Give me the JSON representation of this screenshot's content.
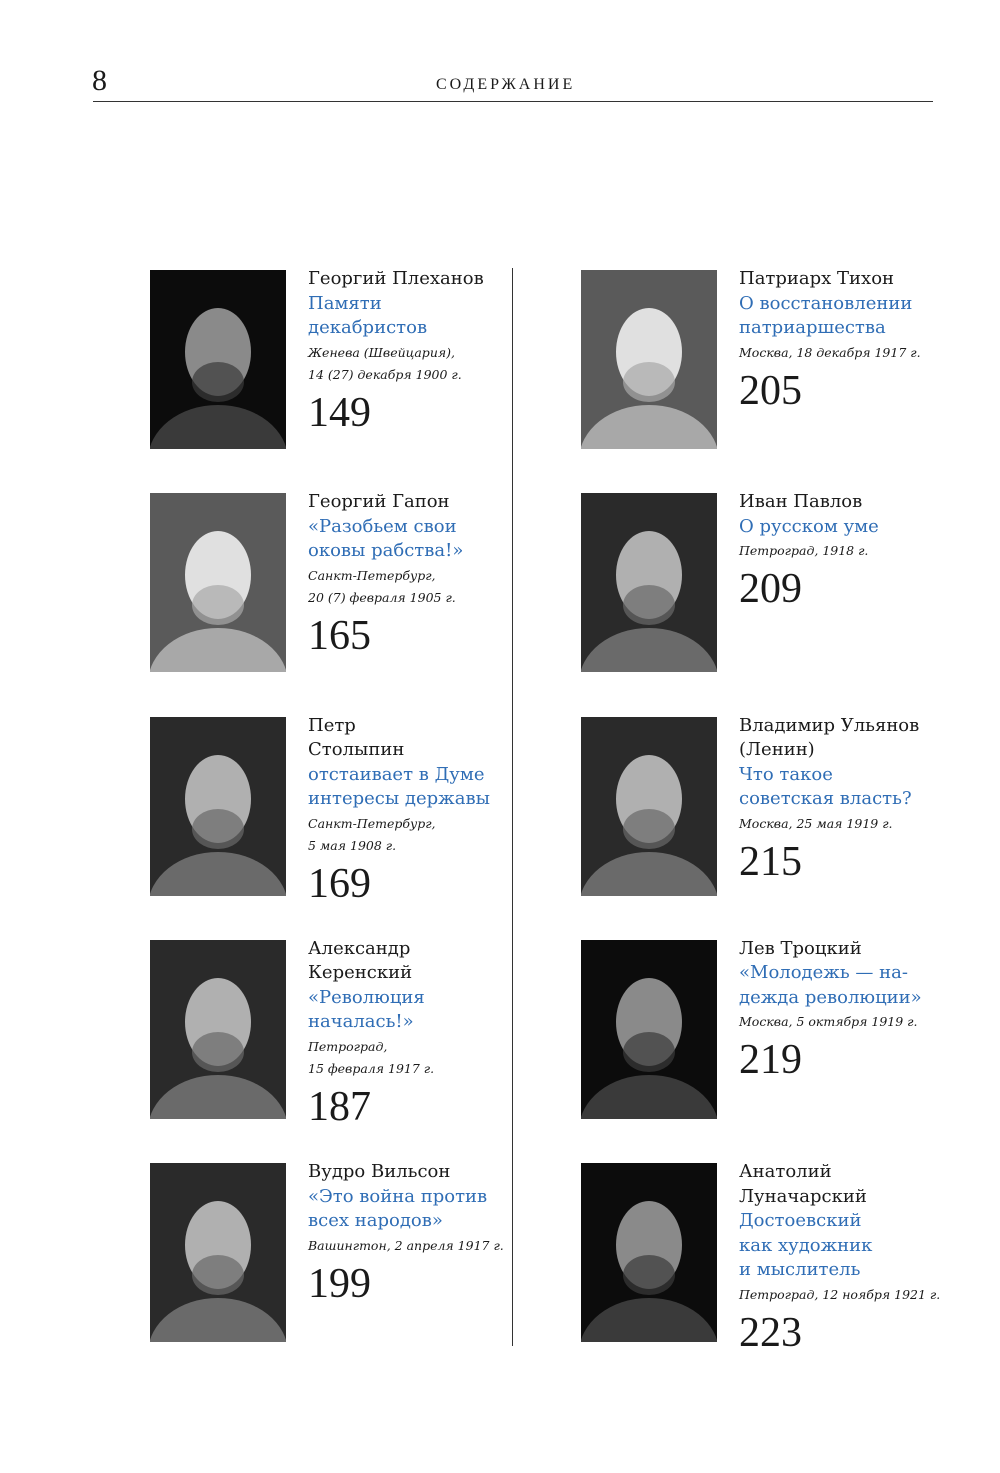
{
  "header": {
    "page_number": "8",
    "running_head": "СОДЕРЖАНИЕ"
  },
  "accent_color": "#2f6db5",
  "entries": [
    {
      "name": "Георгий Плеханов",
      "title": "Памяти\nдекабристов",
      "date": "Женева (Швейцария),\n14 (27) декабря 1900 г.",
      "page": "149",
      "photo_tone": "dark"
    },
    {
      "name": "Георгий Гапон",
      "title": "«Разобьем свои\nоковы рабства!»",
      "date": "Санкт-Петербург,\n20 (7) февраля 1905 г.",
      "page": "165",
      "photo_tone": "light"
    },
    {
      "name": "Петр\nСтолыпин",
      "title": "отстаивает в Думе\nинтересы державы",
      "date": "Санкт-Петербург,\n5 мая 1908 г.",
      "page": "169",
      "photo_tone": "mid"
    },
    {
      "name": "Александр\nКеренский",
      "title": "«Революция\nначалась!»",
      "date": "Петроград,\n15 февраля 1917 г.",
      "page": "187",
      "photo_tone": "mid"
    },
    {
      "name": "Вудро Вильсон",
      "title": "«Это война против\nвсех народов»",
      "date": "Вашингтон, 2 апреля 1917 г.",
      "page": "199",
      "photo_tone": "mid"
    },
    {
      "name": "Патриарх Тихон",
      "title": "О восстановлении\nпатриаршества",
      "date": "Москва, 18 декабря 1917 г.",
      "page": "205",
      "photo_tone": "light"
    },
    {
      "name": "Иван Павлов",
      "title": "О русском уме",
      "date": "Петроград, 1918 г.",
      "page": "209",
      "photo_tone": "mid"
    },
    {
      "name": "Владимир Ульянов\n(Ленин)",
      "title": "Что такое\nсоветская власть?",
      "date": "Москва, 25 мая 1919 г.",
      "page": "215",
      "photo_tone": "mid"
    },
    {
      "name": "Лев Троцкий",
      "title": "«Молодежь — на-\nдежда революции»",
      "date": "Москва, 5 октября 1919 г.",
      "page": "219",
      "photo_tone": "dark"
    },
    {
      "name": "Анатолий\nЛуначарский",
      "title": "Достоевский\nкак художник\nи мыслитель",
      "date": "Петроград, 12 ноября 1921 г.",
      "page": "223",
      "photo_tone": "dark"
    }
  ]
}
